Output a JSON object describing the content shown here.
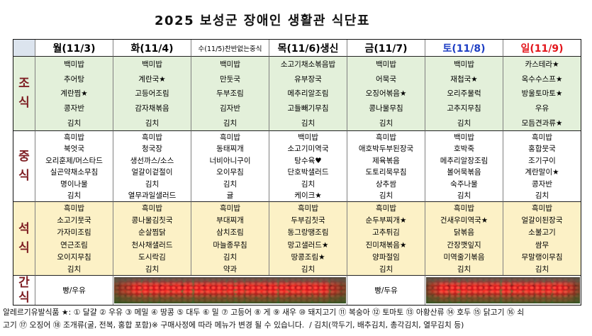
{
  "title": "2025 보성군 장애인 생활관 식단표",
  "colors": {
    "meal_label": "#7e1d22",
    "corner": "#dce4ee"
  },
  "meals": [
    {
      "label": "조식",
      "bg": "#e3f0da"
    },
    {
      "label": "중식",
      "bg": "#ffffff"
    },
    {
      "label": "석식",
      "bg": "#fcf1c6"
    },
    {
      "label": "간식",
      "bg": "#ffffff"
    }
  ],
  "days": [
    {
      "label": "월(11/3)",
      "color": "#000000",
      "menus": [
        [
          "백미밥",
          "추어탕",
          "계란찜★",
          "콩자반",
          "김치"
        ],
        [
          "흑미밥",
          "북엇국",
          "오리훈제/머스타드",
          "실곤약채소무침",
          "명이나물",
          "김치"
        ],
        [
          "흑미밥",
          "소고기뭇국",
          "가자미조림",
          "연근조림",
          "오이지무침",
          "김치"
        ]
      ],
      "snack": "빵/우유"
    },
    {
      "label": "화(11/4)",
      "color": "#000000",
      "menus": [
        [
          "백미밥",
          "계란국★",
          "고등어조림",
          "감자채볶음",
          "김치"
        ],
        [
          "흑미밥",
          "청국장",
          "생선까스/소스",
          "얼갈이겉절이",
          "김치",
          "열무과일샐러드"
        ],
        [
          "흑미밥",
          "콩나물김칫국",
          "순살찜닭",
          "천사채샐러드",
          "도시락김",
          "김치"
        ]
      ]
    },
    {
      "label": "수(11/5)찬반없는중식",
      "color": "#000000",
      "menus": [
        [
          "백미밥",
          "만둣국",
          "두부조림",
          "김자반",
          "김치"
        ],
        [
          "흑미밥",
          "동태찌개",
          "너비아니구이",
          "오이무침",
          "김치",
          "귤"
        ],
        [
          "흑미밥",
          "부대찌개",
          "삼치조림",
          "마늘종무침",
          "김치",
          "약과"
        ]
      ]
    },
    {
      "label": "목(11/6)생신",
      "color": "#000000",
      "menus": [
        [
          "소고기채소볶음밥",
          "유부장국",
          "메추리알조림",
          "고들빼기무침",
          "김치"
        ],
        [
          "백미밥",
          "소고기미역국",
          "탕수육♥",
          "단호박샐러드",
          "김치",
          "케이크★"
        ],
        [
          "흑미밥",
          "두부김칫국",
          "동그랑땡조림",
          "망고샐러드★",
          "땅콩조림★",
          "김치"
        ]
      ]
    },
    {
      "label": "금(11/7)",
      "color": "#000000",
      "menus": [
        [
          "백미밥",
          "어묵국",
          "오징어볶음★",
          "콩나물무침",
          "김치"
        ],
        [
          "흑미밥",
          "애호박두부된장국",
          "제육볶음",
          "도토리묵무침",
          "상추쌈",
          "김치"
        ],
        [
          "흑미밥",
          "순두부찌개★",
          "고추튀김",
          "진미채볶음★",
          "양파절임",
          "김치"
        ]
      ],
      "snack": "빵/두유"
    },
    {
      "label": "토(11/8)",
      "color": "#1f3fc4",
      "menus": [
        [
          "백미밥",
          "재첩국★",
          "오리주물럭",
          "고추지무침",
          "김치"
        ],
        [
          "백미밥",
          "호박죽",
          "메추리알장조림",
          "볼어묵볶음",
          "숙주나물",
          "김치"
        ],
        [
          "흑미밥",
          "건새우미역국★",
          "닭볶음",
          "간장깻잎지",
          "미역줄기볶음",
          "김치"
        ]
      ]
    },
    {
      "label": "일(11/9)",
      "color": "#e3161c",
      "menus": [
        [
          "카스테라★",
          "옥수수스프★",
          "방울토마토★",
          "우유",
          "모듬견과류★"
        ],
        [
          "흑미밥",
          "홍합뭇국",
          "조기구이",
          "계란말이★",
          "콩자반",
          "김치"
        ],
        [
          "흑미밥",
          "얼갈이된장국",
          "소불고기",
          "쌈무",
          "무말랭이무침",
          "김치"
        ]
      ]
    }
  ],
  "snack_photo_icon": "red-flower-photo",
  "footer": {
    "line1": "알레르기유발식품 ★: ① 달걀 ② 우유 ③ 메밀 ④ 땅콩 ⑤ 대두 ⑥ 밀 ⑦ 고등어 ⑧ 게 ⑨ 새우 ⑩ 돼지고기 ⑪ 복숭아 ⑫ 토마토 ⑬ 아황산류 ⑭ 호두 ⑮ 닭고기 ⑯ 쇠",
    "line2": "고기 ⑰ 오징어 ⑱ 조개류(굴, 전복, 홍합 포함)※ 구매사정에 따라 메뉴가 변경 될 수 있습니다.  / 김치(깍두기, 배추김치, 총각김치, 열무김치 등)"
  }
}
